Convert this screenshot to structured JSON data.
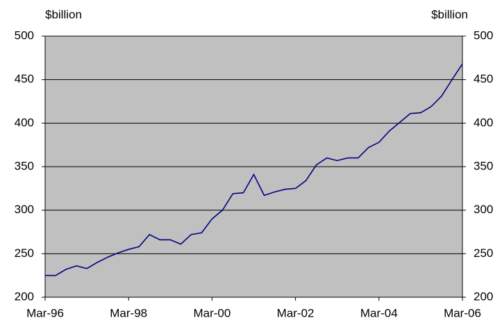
{
  "chart_data": {
    "type": "line",
    "y_label": "$billion",
    "y2_label": "$billion",
    "categories": [
      "Mar-96",
      null,
      null,
      null,
      null,
      null,
      null,
      null,
      "Mar-98",
      null,
      null,
      null,
      null,
      null,
      null,
      null,
      "Mar-00",
      null,
      null,
      null,
      null,
      null,
      null,
      null,
      "Mar-02",
      null,
      null,
      null,
      null,
      null,
      null,
      null,
      "Mar-04",
      null,
      null,
      null,
      null,
      null,
      null,
      null,
      "Mar-06"
    ],
    "series": [
      {
        "name": "$billion",
        "color": "#000080",
        "values": [
          225,
          225,
          232,
          236,
          233,
          240,
          246,
          251,
          255,
          258,
          272,
          266,
          266,
          261,
          272,
          274,
          290,
          300,
          319,
          320,
          341,
          317,
          321,
          324,
          325,
          334,
          352,
          360,
          357,
          360,
          360,
          372,
          378,
          391,
          401,
          411,
          412,
          419,
          431,
          450,
          468
        ]
      }
    ],
    "ylim": [
      200,
      500
    ],
    "yticks": [
      200,
      250,
      300,
      350,
      400,
      450,
      500
    ],
    "y2lim": [
      200,
      500
    ],
    "y2ticks": [
      200,
      250,
      300,
      350,
      400,
      450,
      500
    ],
    "grid": true,
    "plot_background": "#c0c0c0"
  }
}
